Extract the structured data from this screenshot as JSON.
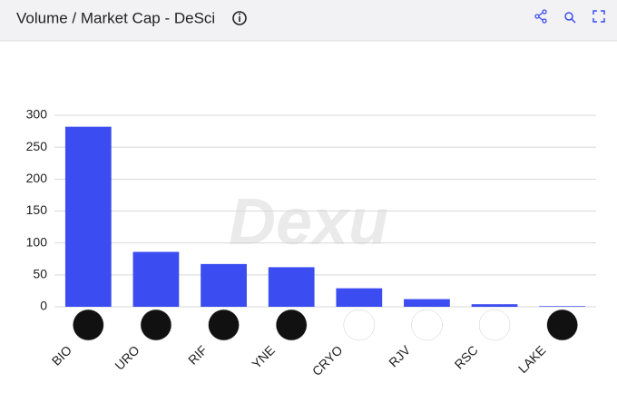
{
  "chart_data": {
    "type": "bar",
    "title": "Volume / Market Cap - DeSci",
    "watermark": "Dexu",
    "categories": [
      "BIO",
      "URO",
      "RIF",
      "YNE",
      "CRYO",
      "RJV",
      "RSC",
      "LAKE"
    ],
    "values": [
      282,
      86,
      67,
      62,
      29,
      12,
      4,
      1
    ],
    "color": "#3b4cf0",
    "ylim": [
      0,
      300
    ],
    "yticks": [
      0,
      50,
      100,
      150,
      200,
      250,
      300
    ],
    "grid": true
  }
}
